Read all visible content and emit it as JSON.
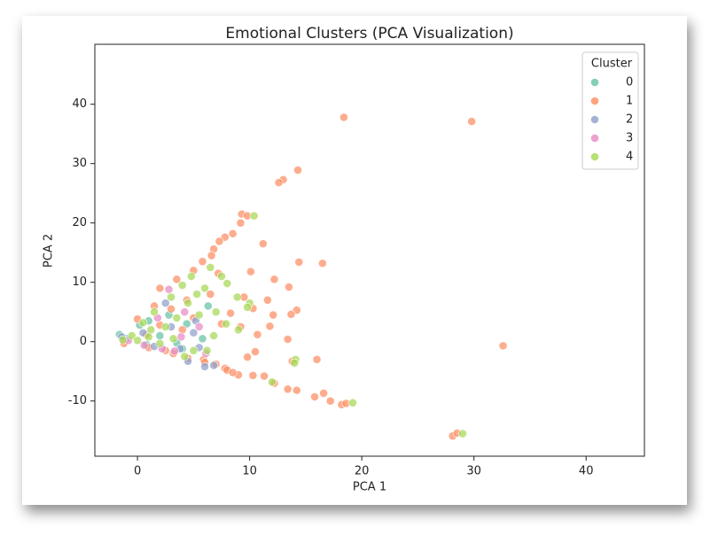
{
  "chart_data": {
    "type": "scatter",
    "title": "Emotional Clusters (PCA Visualization)",
    "x_label": "PCA 1",
    "y_label": "PCA 2",
    "legend_title": "Cluster",
    "legend_position": "upper right",
    "xlim": [
      -3.8,
      45.2
    ],
    "ylim": [
      -19.3,
      50.1
    ],
    "xticks": [
      0,
      10,
      20,
      30,
      40
    ],
    "yticks": [
      -10,
      0,
      10,
      20,
      30,
      40
    ],
    "series": [
      {
        "name": "0",
        "color": "#66c2a5",
        "x": [
          -1.6,
          -1.0,
          0.2,
          1.0,
          2.0,
          3.5,
          4.4,
          5.8,
          0.8,
          2.8,
          6.3,
          4.0
        ],
        "values": [
          1.2,
          0.5,
          2.8,
          3.5,
          1.0,
          -0.2,
          3.0,
          0.5,
          -0.5,
          4.5,
          6.0,
          -1.2
        ]
      },
      {
        "name": "1",
        "color": "#fc8d62",
        "x": [
          18.4,
          29.8,
          14.3,
          13.0,
          12.6,
          9.3,
          9.8,
          9.2,
          8.5,
          7.8,
          7.3,
          11.2,
          6.8,
          14.4,
          16.5,
          10.1,
          12.2,
          13.5,
          11.6,
          9.5,
          10.3,
          12.1,
          14.2,
          13.7,
          8.3,
          11.8,
          9.2,
          10.7,
          13.4,
          10.5,
          32.6,
          9.8,
          16.0,
          13.8,
          11.3,
          10.3,
          12.2,
          13.4,
          14.2,
          16.6,
          15.8,
          17.2,
          18.2,
          18.6,
          28.1,
          28.5,
          7.8,
          9.0,
          5.9,
          -1.2,
          0.0,
          0.8,
          1.5,
          2.0,
          2.5,
          3.0,
          3.5,
          4.0,
          4.5,
          5.0,
          5.0,
          5.8,
          6.0,
          6.5,
          7.0,
          7.5,
          8.0,
          8.5,
          6.6,
          2.0,
          3.2,
          1.0,
          4.4,
          7.2
        ],
        "values": [
          37.8,
          37.1,
          28.9,
          27.3,
          26.8,
          21.5,
          21.2,
          20.0,
          18.2,
          17.6,
          16.9,
          16.5,
          15.6,
          13.4,
          13.2,
          11.8,
          10.5,
          9.2,
          7.0,
          7.5,
          5.6,
          4.5,
          5.3,
          4.6,
          4.8,
          2.6,
          2.5,
          1.2,
          0.4,
          -1.7,
          -0.7,
          -2.6,
          -3.0,
          -3.3,
          -5.8,
          -5.7,
          -7.0,
          -8.0,
          -8.2,
          -8.7,
          -9.3,
          -10.0,
          -10.6,
          -10.4,
          -15.9,
          -15.4,
          -4.5,
          -5.6,
          -3.0,
          -0.3,
          3.8,
          1.2,
          6.0,
          2.8,
          -1.5,
          5.5,
          10.5,
          2.0,
          -2.8,
          12.0,
          4.0,
          13.5,
          -3.5,
          8.0,
          -3.8,
          3.0,
          -4.8,
          -5.2,
          14.5,
          9.0,
          -2.0,
          -1.0,
          7.0,
          11.5
        ]
      },
      {
        "name": "2",
        "color": "#8da0cb",
        "x": [
          -1.4,
          0.5,
          1.5,
          3.0,
          3.8,
          4.5,
          5.5,
          6.0,
          2.5,
          5.0,
          6.8,
          5.2
        ],
        "values": [
          0.8,
          1.5,
          -0.8,
          2.5,
          -1.2,
          -3.3,
          -1.0,
          -4.2,
          6.5,
          1.5,
          -4.0,
          3.5
        ]
      },
      {
        "name": "3",
        "color": "#e78ac3",
        "x": [
          -0.8,
          0.6,
          1.8,
          2.8,
          3.3,
          4.2,
          5.5,
          2.2,
          3.9,
          6.1
        ],
        "values": [
          0.2,
          -0.6,
          4.0,
          8.8,
          -1.6,
          5.0,
          2.5,
          -1.2,
          0.8,
          -2.0
        ]
      },
      {
        "name": "4",
        "color": "#a6d854",
        "x": [
          10.4,
          29.0,
          19.2,
          14.1,
          14.0,
          12.0,
          8.0,
          7.5,
          8.9,
          10.0,
          9.8,
          9.0,
          6.5,
          7.9,
          -1.3,
          -0.5,
          0.0,
          0.5,
          1.2,
          1.5,
          2.0,
          2.5,
          3.0,
          3.5,
          4.0,
          4.5,
          4.8,
          5.0,
          5.5,
          6.0,
          6.2,
          6.8,
          7.0,
          3.2,
          1.0,
          4.2,
          5.3
        ],
        "values": [
          21.2,
          -15.5,
          -10.3,
          -3.0,
          -3.6,
          -6.8,
          9.8,
          11.0,
          7.5,
          6.5,
          5.8,
          2.0,
          12.5,
          3.0,
          0.3,
          1.0,
          0.2,
          3.2,
          2.0,
          5.0,
          -0.3,
          2.5,
          7.5,
          4.0,
          9.5,
          6.5,
          11.0,
          -1.5,
          4.5,
          9.0,
          -1.5,
          1.0,
          5.0,
          0.5,
          0.8,
          -2.5,
          8.0
        ]
      }
    ]
  }
}
